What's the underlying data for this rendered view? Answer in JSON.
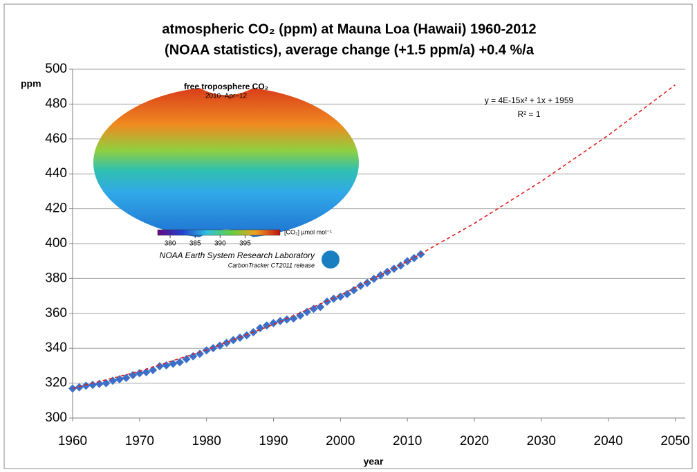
{
  "chart_data": {
    "type": "scatter",
    "title": [
      "atmospheric CO₂ (ppm) at Mauna Loa (Hawaii) 1960-2012",
      "(NOAA statistics), average change (+1.5 ppm/a) +0.4 %/a"
    ],
    "xlabel": "year",
    "ylabel": "ppm",
    "xlim": [
      1960,
      2051.5
    ],
    "ylim": [
      300,
      500
    ],
    "xticks": [
      1960,
      1970,
      1980,
      1990,
      2000,
      2010,
      2020,
      2030,
      2040,
      2050
    ],
    "yticks": [
      300,
      320,
      340,
      360,
      380,
      400,
      420,
      440,
      460,
      480,
      500
    ],
    "grid": true,
    "annotations": [
      "y = 4E-15x² + 1x + 1959",
      "R² = 1"
    ],
    "series": [
      {
        "color": "#3c70c8",
        "marker": "diamond",
        "x": [
          1960,
          1961,
          1962,
          1963,
          1964,
          1965,
          1966,
          1967,
          1968,
          1969,
          1970,
          1971,
          1972,
          1973,
          1974,
          1975,
          1976,
          1977,
          1978,
          1979,
          1980,
          1981,
          1982,
          1983,
          1984,
          1985,
          1986,
          1987,
          1988,
          1989,
          1990,
          1991,
          1992,
          1993,
          1994,
          1995,
          1996,
          1997,
          1998,
          1999,
          2000,
          2001,
          2002,
          2003,
          2004,
          2005,
          2006,
          2007,
          2008,
          2009,
          2010,
          2011,
          2012
        ],
        "values": [
          316.9,
          317.6,
          318.5,
          319.0,
          319.6,
          320.0,
          321.4,
          322.2,
          323.0,
          324.6,
          325.7,
          326.3,
          327.5,
          329.7,
          330.2,
          331.1,
          332.0,
          333.8,
          335.4,
          336.8,
          338.8,
          340.1,
          341.5,
          343.1,
          344.7,
          346.1,
          347.4,
          349.2,
          351.6,
          353.1,
          354.4,
          355.6,
          356.5,
          357.1,
          358.8,
          360.8,
          362.6,
          363.7,
          366.7,
          368.4,
          369.6,
          371.1,
          373.3,
          375.8,
          377.5,
          379.8,
          381.9,
          383.8,
          385.6,
          387.4,
          389.9,
          391.7,
          393.9
        ]
      },
      {
        "color": "#e02020",
        "style": "dashed",
        "x": [
          1960,
          1970,
          1980,
          1990,
          2000,
          2010,
          2020,
          2030,
          2040,
          2050
        ],
        "values": [
          317,
          326.8,
          339,
          353.6,
          370.5,
          389.8,
          411.6,
          435.7,
          462.1,
          491
        ]
      }
    ],
    "inset": {
      "title": "free troposphere CO₂",
      "date": "2010–Apr–12",
      "colorbar_lim": [
        377.5,
        402
      ],
      "colorbar_ticks": [
        380,
        385,
        390,
        395
      ],
      "colorbar_label": "[CO₂] µmol mol⁻¹",
      "credit": "NOAA Earth System Research Laboratory",
      "release": "CarbonTracker CT2011 release"
    }
  }
}
